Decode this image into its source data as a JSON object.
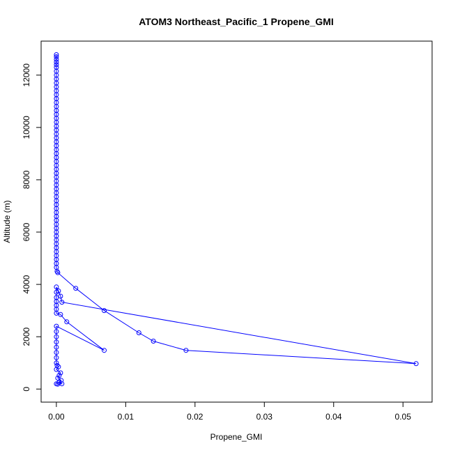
{
  "chart_data": {
    "type": "line",
    "title": "ATOM3 Northeast_Pacific_1 Propene_GMI",
    "xlabel": "Propene_GMI",
    "ylabel": "Altitude (m)",
    "xlim": [
      -0.0022,
      0.0542
    ],
    "ylim": [
      -500,
      13300
    ],
    "x_ticks": [
      0.0,
      0.01,
      0.02,
      0.03,
      0.04,
      0.05
    ],
    "x_tick_labels": [
      "0.00",
      "0.01",
      "0.02",
      "0.03",
      "0.04",
      "0.05"
    ],
    "y_ticks": [
      0,
      2000,
      4000,
      6000,
      8000,
      10000,
      12000
    ],
    "y_tick_labels": [
      "0",
      "2000",
      "4000",
      "6000",
      "8000",
      "10000",
      "12000"
    ],
    "marker": "open-circle",
    "grid": false,
    "legend": "none",
    "series": [
      {
        "color": "#0000ff",
        "points": [
          {
            "x": 0.0,
            "y": 12780
          },
          {
            "x": 0.0,
            "y": 12700
          },
          {
            "x": 0.0,
            "y": 12600
          },
          {
            "x": 0.0,
            "y": 12500
          },
          {
            "x": 0.0,
            "y": 12400
          },
          {
            "x": 0.0,
            "y": 12300
          },
          {
            "x": 0.0,
            "y": 12150
          },
          {
            "x": 0.0,
            "y": 12000
          },
          {
            "x": 0.0,
            "y": 11850
          },
          {
            "x": 0.0,
            "y": 11700
          },
          {
            "x": 0.0,
            "y": 11550
          },
          {
            "x": 0.0,
            "y": 11400
          },
          {
            "x": 0.0,
            "y": 11250
          },
          {
            "x": 0.0,
            "y": 11100
          },
          {
            "x": 0.0,
            "y": 10950
          },
          {
            "x": 0.0,
            "y": 10800
          },
          {
            "x": 0.0,
            "y": 10650
          },
          {
            "x": 0.0,
            "y": 10500
          },
          {
            "x": 0.0,
            "y": 10350
          },
          {
            "x": 0.0,
            "y": 10200
          },
          {
            "x": 0.0,
            "y": 10050
          },
          {
            "x": 0.0,
            "y": 9900
          },
          {
            "x": 0.0,
            "y": 9750
          },
          {
            "x": 0.0,
            "y": 9600
          },
          {
            "x": 0.0,
            "y": 9450
          },
          {
            "x": 0.0,
            "y": 9300
          },
          {
            "x": 0.0,
            "y": 9150
          },
          {
            "x": 0.0,
            "y": 9000
          },
          {
            "x": 0.0,
            "y": 8850
          },
          {
            "x": 0.0,
            "y": 8700
          },
          {
            "x": 0.0,
            "y": 8550
          },
          {
            "x": 0.0,
            "y": 8400
          },
          {
            "x": 0.0,
            "y": 8250
          },
          {
            "x": 0.0,
            "y": 8100
          },
          {
            "x": 0.0,
            "y": 7950
          },
          {
            "x": 0.0,
            "y": 7800
          },
          {
            "x": 0.0,
            "y": 7650
          },
          {
            "x": 0.0,
            "y": 7500
          },
          {
            "x": 0.0,
            "y": 7350
          },
          {
            "x": 0.0,
            "y": 7200
          },
          {
            "x": 0.0,
            "y": 7050
          },
          {
            "x": 0.0,
            "y": 6900
          },
          {
            "x": 0.0,
            "y": 6750
          },
          {
            "x": 0.0,
            "y": 6600
          },
          {
            "x": 0.0,
            "y": 6450
          },
          {
            "x": 0.0,
            "y": 6300
          },
          {
            "x": 0.0,
            "y": 6150
          },
          {
            "x": 0.0,
            "y": 6000
          },
          {
            "x": 0.0,
            "y": 5850
          },
          {
            "x": 0.0,
            "y": 5700
          },
          {
            "x": 0.0,
            "y": 5550
          },
          {
            "x": 0.0,
            "y": 5400
          },
          {
            "x": 0.0,
            "y": 5250
          },
          {
            "x": 0.0,
            "y": 5100
          },
          {
            "x": 0.0,
            "y": 4950
          },
          {
            "x": 0.0,
            "y": 4800
          },
          {
            "x": 0.0,
            "y": 4650
          },
          {
            "x": 0.0001,
            "y": 4500
          },
          {
            "x": 0.0002,
            "y": 4450
          },
          {
            "x": 0.0028,
            "y": 3850
          },
          {
            "x": 0.0069,
            "y": 3000
          },
          {
            "x": 0.0119,
            "y": 2150
          },
          {
            "x": 0.014,
            "y": 1830
          },
          {
            "x": 0.0187,
            "y": 1480
          },
          {
            "x": 0.0519,
            "y": 970
          },
          {
            "x": 0.0008,
            "y": 3320
          },
          {
            "x": 0.0006,
            "y": 3550
          },
          {
            "x": 0.0003,
            "y": 3750
          },
          {
            "x": 0.0,
            "y": 3900
          },
          {
            "x": 0.0,
            "y": 3700
          },
          {
            "x": 0.0,
            "y": 3500
          },
          {
            "x": 0.0,
            "y": 3350
          },
          {
            "x": 0.0,
            "y": 3200
          },
          {
            "x": 0.0,
            "y": 3050
          },
          {
            "x": 0.0,
            "y": 2900
          },
          {
            "x": 0.0006,
            "y": 2850
          },
          {
            "x": 0.0015,
            "y": 2570
          },
          {
            "x": 0.0069,
            "y": 1480
          },
          {
            "x": 0.0,
            "y": 2400
          },
          {
            "x": 0.0,
            "y": 2200
          },
          {
            "x": 0.0,
            "y": 2000
          },
          {
            "x": 0.0,
            "y": 1800
          },
          {
            "x": 0.0,
            "y": 1600
          },
          {
            "x": 0.0,
            "y": 1400
          },
          {
            "x": 0.0,
            "y": 1200
          },
          {
            "x": 0.0,
            "y": 1000
          },
          {
            "x": 0.0001,
            "y": 900
          },
          {
            "x": 0.0003,
            "y": 850
          },
          {
            "x": 0.0,
            "y": 750
          },
          {
            "x": 0.0006,
            "y": 620
          },
          {
            "x": 0.0004,
            "y": 520
          },
          {
            "x": 0.0002,
            "y": 420
          },
          {
            "x": 0.0007,
            "y": 330
          },
          {
            "x": 0.0004,
            "y": 260
          },
          {
            "x": 0.0008,
            "y": 200
          },
          {
            "x": 0.0002,
            "y": 190
          },
          {
            "x": 0.0,
            "y": 200
          }
        ]
      }
    ]
  }
}
